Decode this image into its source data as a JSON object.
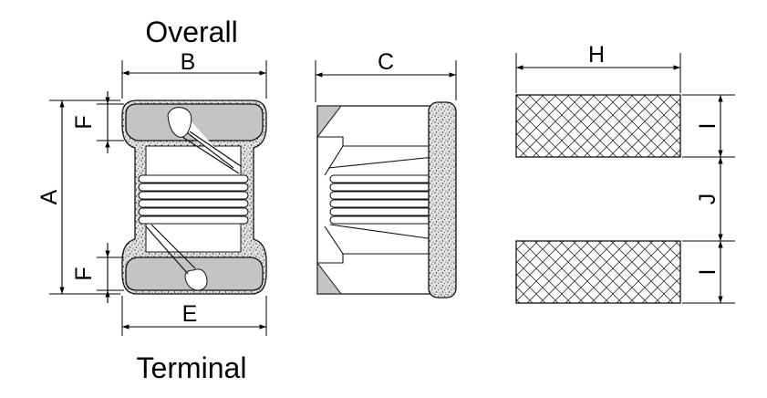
{
  "title_top": "Overall",
  "title_bottom": "Terminal",
  "dimensions": {
    "A": "A",
    "B": "B",
    "C": "C",
    "E": "E",
    "F_top": "F",
    "F_bottom": "F",
    "H": "H",
    "I_top": "I",
    "J": "J",
    "I_bottom": "I"
  },
  "colors": {
    "terminal_fill": "#c4c4c4",
    "ferrite_fill": "#d9d9d9",
    "stroke": "#000000"
  }
}
